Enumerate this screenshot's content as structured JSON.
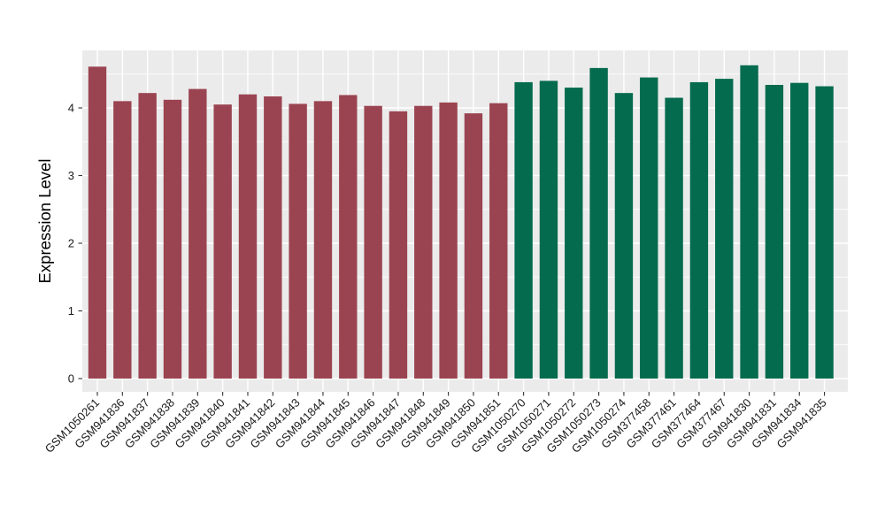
{
  "figure": {
    "background_color": "#FFFFFF",
    "panel_background_color": "#EBEBEB",
    "grid_color": "#FFFFFF",
    "tick_mark_color": "#333333",
    "axis_text_color": "#1A1A1A",
    "axis_title_color": "#000000"
  },
  "chart_data": {
    "type": "bar",
    "title": "",
    "xlabel": "",
    "ylabel": "Expression Level",
    "ylim": [
      -0.2,
      4.85
    ],
    "yticks": [
      0,
      1,
      2,
      3,
      4
    ],
    "grid": true,
    "legend_position": "none",
    "x_tick_angle_deg": 45,
    "categories": [
      "GSM1050261",
      "GSM941836",
      "GSM941837",
      "GSM941838",
      "GSM941839",
      "GSM941840",
      "GSM941841",
      "GSM941842",
      "GSM941843",
      "GSM941844",
      "GSM941845",
      "GSM941846",
      "GSM941847",
      "GSM941848",
      "GSM941849",
      "GSM941850",
      "GSM941851",
      "GSM1050270",
      "GSM1050271",
      "GSM1050272",
      "GSM1050273",
      "GSM1050274",
      "GSM377458",
      "GSM377461",
      "GSM377464",
      "GSM377467",
      "GSM941830",
      "GSM941831",
      "GSM941834",
      "GSM941835"
    ],
    "values": [
      4.61,
      4.1,
      4.22,
      4.12,
      4.28,
      4.05,
      4.2,
      4.17,
      4.06,
      4.1,
      4.19,
      4.03,
      3.95,
      4.03,
      4.08,
      3.92,
      4.07,
      4.38,
      4.4,
      4.3,
      4.59,
      4.22,
      4.45,
      4.15,
      4.38,
      4.43,
      4.63,
      4.34,
      4.37,
      4.32
    ],
    "groups": [
      "group1",
      "group1",
      "group1",
      "group1",
      "group1",
      "group1",
      "group1",
      "group1",
      "group1",
      "group1",
      "group1",
      "group1",
      "group1",
      "group1",
      "group1",
      "group1",
      "group1",
      "group2",
      "group2",
      "group2",
      "group2",
      "group2",
      "group2",
      "group2",
      "group2",
      "group2",
      "group2",
      "group2",
      "group2",
      "group2"
    ],
    "group_colors": {
      "group1": "#9B4451",
      "group2": "#056B4E"
    }
  }
}
